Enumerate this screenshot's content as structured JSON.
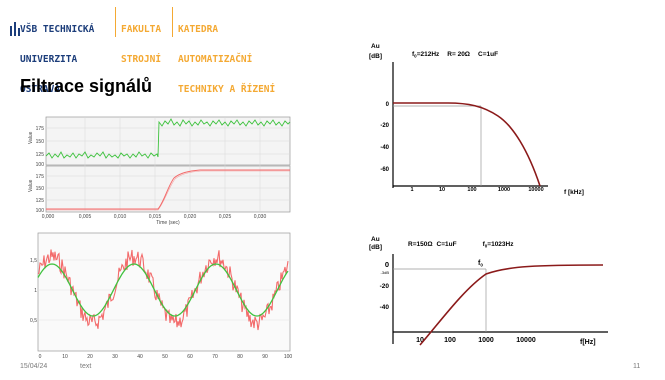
{
  "header": {
    "university": [
      "VŠB TECHNICKÁ",
      "UNIVERZITA",
      "OSTRAVA"
    ],
    "faculty": [
      "FAKULTA",
      "STROJNÍ"
    ],
    "department": [
      "KATEDRA",
      "AUTOMATIZAČNÍ",
      "TECHNIKY A ŘÍZENÍ"
    ]
  },
  "slide": {
    "title": "Filtrace signálů"
  },
  "footer": {
    "date": "15/04/24",
    "text": "text",
    "page": "11"
  },
  "colors": {
    "logo_blue": "#1c3d7a",
    "logo_orange": "#f4a933",
    "curve": "#8b1a1a",
    "signal_green": "#3fc23f",
    "signal_red": "#f36a6a"
  },
  "bode_top": {
    "ylabel": [
      "Au",
      "[dB]"
    ],
    "params": [
      "f",
      "=212Hz",
      "R= 20Ω",
      "C=1uF"
    ],
    "fsub": "0",
    "yticks": [
      "0",
      "-20",
      "-40",
      "-60"
    ],
    "xticks": [
      "1",
      "10",
      "100",
      "1000",
      "10000"
    ],
    "xlabel": "f [kHz]"
  },
  "bode_bottom": {
    "ylabel": [
      "Au",
      "[dB]"
    ],
    "params": [
      "R=150Ω",
      "C=1uF",
      "f",
      "=1023Hz"
    ],
    "fsub": "0",
    "marker": "f",
    "yticks": [
      "0",
      "-3dB",
      "-20",
      "-40"
    ],
    "xticks": [
      "10",
      "100",
      "1000",
      "10000"
    ],
    "xlabel": "f[Hz]"
  },
  "step_chart": {
    "upper_yticks": [
      "175",
      "150",
      "125",
      "100"
    ],
    "lower_yticks": [
      "175",
      "150",
      "125",
      "100"
    ],
    "xticks": [
      "0,000",
      "0,005",
      "0,010",
      "0,015",
      "0,020",
      "0,025",
      "0,030"
    ],
    "ylabel": "Value",
    "xlabel": "Time (sec)"
  },
  "sine_chart": {
    "yticks": [
      "1,5",
      "1",
      "0,5"
    ],
    "xticks": [
      "0",
      "10",
      "20",
      "30",
      "40",
      "50",
      "60",
      "70",
      "80",
      "90",
      "100"
    ]
  }
}
